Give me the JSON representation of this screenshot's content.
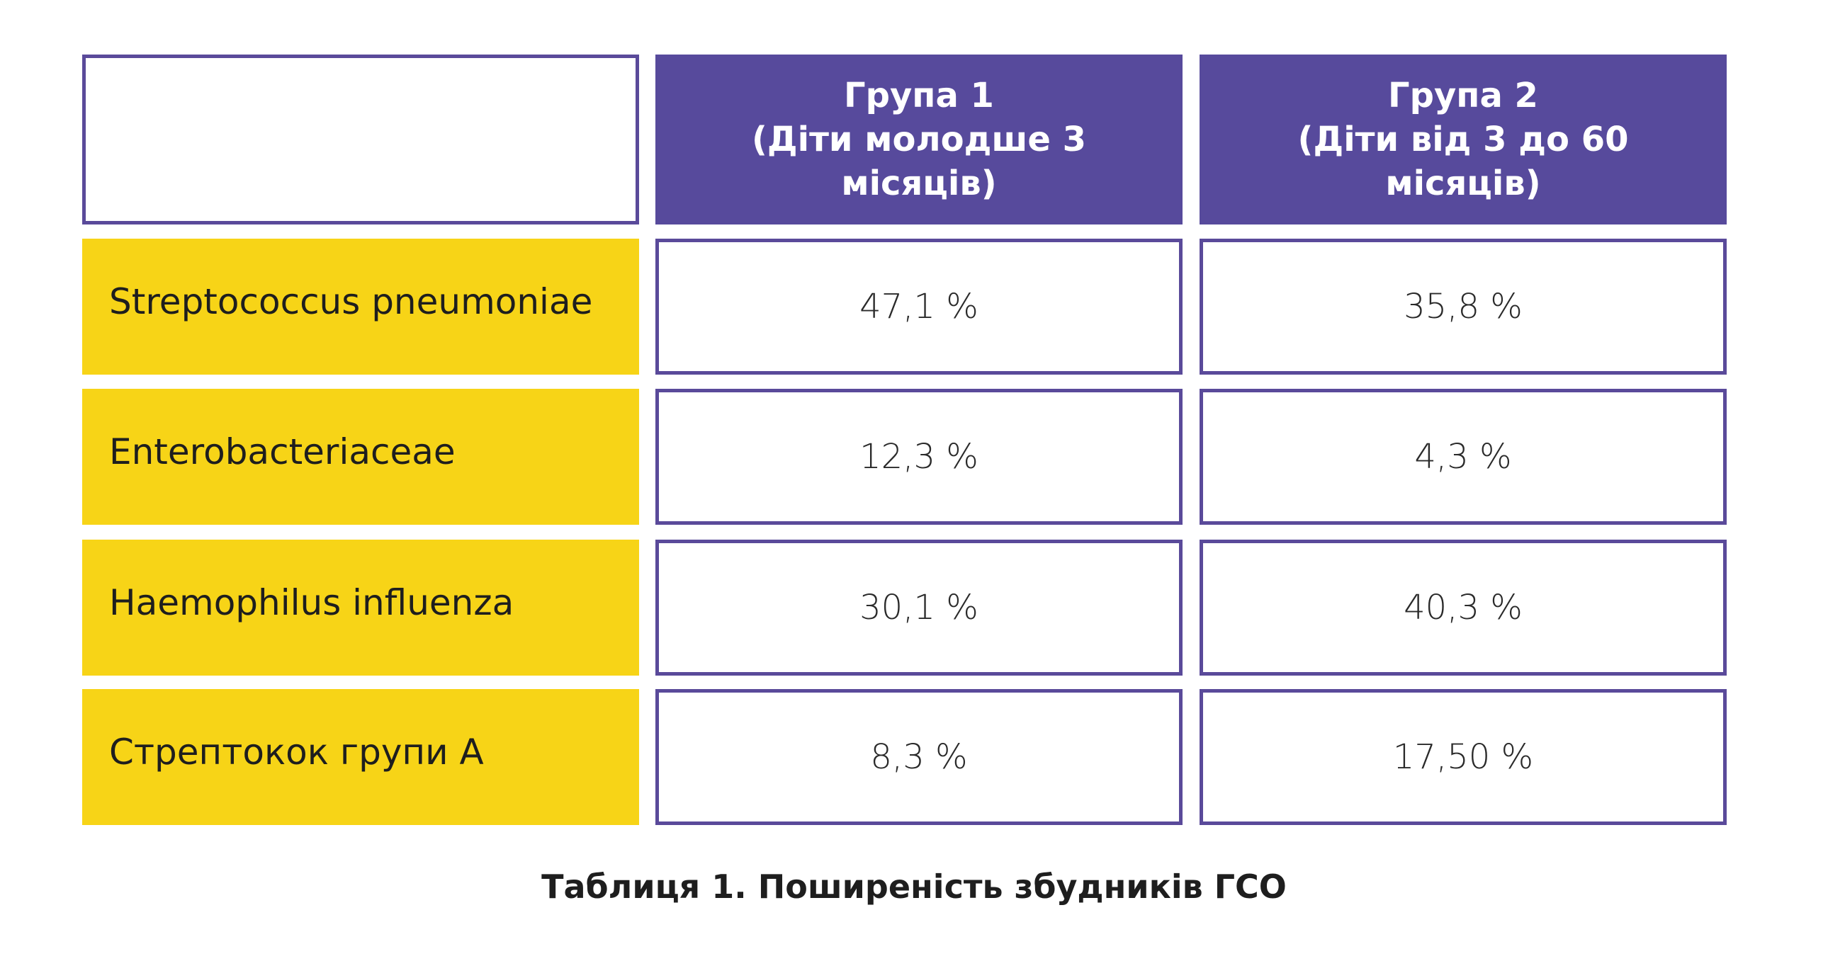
{
  "table": {
    "headers": [
      {
        "lines": [
          "Група 1",
          "(Діти молодше 3",
          "місяців)"
        ]
      },
      {
        "lines": [
          "Група 2",
          "(Діти від 3 до 60",
          "місяців)"
        ]
      }
    ],
    "rows": [
      {
        "label": "Streptococcus pneumoniae",
        "group1": "47,1 %",
        "group2": "35,8 %"
      },
      {
        "label": "Enterobacteriaceae",
        "group1": "12,3 %",
        "group2": "4,3 %"
      },
      {
        "label": "Haemophilus influenza",
        "group1": "30,1 %",
        "group2": "40,3 %"
      },
      {
        "label": "Стрептокок групи А",
        "group1": "8,3 %",
        "group2": "17,50 %"
      }
    ]
  },
  "caption": "Таблиця 1. Поширеність збудників ГСО",
  "colors": {
    "header_bg": "#574a9c",
    "label_bg": "#f7d417",
    "border": "#5a4a9a"
  }
}
